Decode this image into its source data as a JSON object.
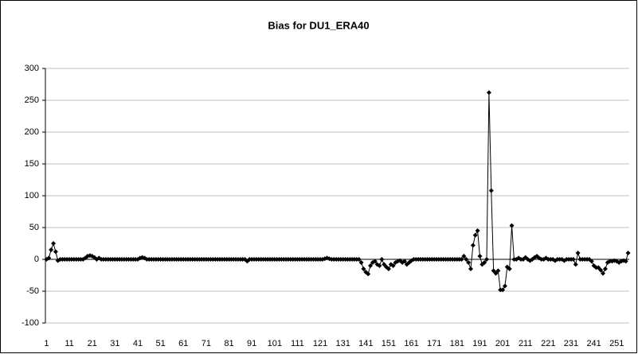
{
  "chart_data": {
    "type": "line",
    "title": "Bias for DU1_ERA40",
    "categories": [
      1,
      null,
      null,
      null,
      null,
      null,
      null,
      null,
      null,
      null,
      11,
      null,
      null,
      null,
      null,
      null,
      null,
      null,
      null,
      null,
      21,
      null,
      null,
      null,
      null,
      null,
      null,
      null,
      null,
      null,
      31,
      null,
      null,
      null,
      null,
      null,
      null,
      null,
      null,
      null,
      41,
      null,
      null,
      null,
      null,
      null,
      null,
      null,
      null,
      null,
      51,
      null,
      null,
      null,
      null,
      null,
      null,
      null,
      null,
      null,
      61,
      null,
      null,
      null,
      null,
      null,
      null,
      null,
      null,
      null,
      71,
      null,
      null,
      null,
      null,
      null,
      null,
      null,
      null,
      null,
      81,
      null,
      null,
      null,
      null,
      null,
      null,
      null,
      null,
      null,
      91,
      null,
      null,
      null,
      null,
      null,
      null,
      null,
      null,
      null,
      101,
      null,
      null,
      null,
      null,
      null,
      null,
      null,
      null,
      null,
      111,
      null,
      null,
      null,
      null,
      null,
      null,
      null,
      null,
      null,
      121,
      null,
      null,
      null,
      null,
      null,
      null,
      null,
      null,
      null,
      131,
      null,
      null,
      null,
      null,
      null,
      null,
      null,
      null,
      null,
      141,
      null,
      null,
      null,
      null,
      null,
      null,
      null,
      null,
      null,
      151,
      null,
      null,
      null,
      null,
      null,
      null,
      null,
      null,
      null,
      161,
      null,
      null,
      null,
      null,
      null,
      null,
      null,
      null,
      null,
      171,
      null,
      null,
      null,
      null,
      null,
      null,
      null,
      null,
      null,
      181,
      null,
      null,
      null,
      null,
      null,
      null,
      null,
      null,
      null,
      191,
      null,
      null,
      null,
      null,
      null,
      null,
      null,
      null,
      null,
      201,
      null,
      null,
      null,
      null,
      null,
      null,
      null,
      null,
      null,
      211,
      null,
      null,
      null,
      null,
      null,
      null,
      null,
      null,
      null,
      221,
      null,
      null,
      null,
      null,
      null,
      null,
      null,
      null,
      null,
      231,
      null,
      null,
      null,
      null,
      null,
      null,
      null,
      null,
      null,
      241,
      null,
      null,
      null,
      null,
      null,
      null,
      null,
      null,
      null,
      251,
      null,
      null,
      null,
      null,
      null
    ],
    "values": [
      0,
      2,
      15,
      25,
      12,
      -2,
      0,
      0,
      0,
      0,
      0,
      0,
      0,
      0,
      0,
      0,
      0,
      2,
      5,
      6,
      5,
      3,
      0,
      2,
      0,
      0,
      0,
      0,
      0,
      0,
      0,
      0,
      0,
      0,
      0,
      0,
      0,
      0,
      0,
      0,
      0,
      2,
      3,
      2,
      0,
      0,
      0,
      0,
      0,
      0,
      0,
      0,
      0,
      0,
      0,
      0,
      0,
      0,
      0,
      0,
      0,
      0,
      0,
      0,
      0,
      0,
      0,
      0,
      0,
      0,
      0,
      0,
      0,
      0,
      0,
      0,
      0,
      0,
      0,
      0,
      0,
      0,
      0,
      0,
      0,
      0,
      0,
      0,
      -3,
      0,
      0,
      0,
      0,
      0,
      0,
      0,
      0,
      0,
      0,
      0,
      0,
      0,
      0,
      0,
      0,
      0,
      0,
      0,
      0,
      0,
      0,
      0,
      0,
      0,
      0,
      0,
      0,
      0,
      0,
      0,
      0,
      0,
      1,
      2,
      1,
      0,
      0,
      0,
      0,
      0,
      0,
      0,
      0,
      0,
      0,
      0,
      0,
      0,
      -5,
      -15,
      -20,
      -23,
      -10,
      -5,
      -3,
      -8,
      -10,
      0,
      -8,
      -12,
      -15,
      -8,
      -10,
      -5,
      -3,
      -2,
      -5,
      -3,
      -8,
      -5,
      -2,
      0,
      0,
      0,
      0,
      0,
      0,
      0,
      0,
      0,
      0,
      0,
      0,
      0,
      0,
      0,
      0,
      0,
      0,
      0,
      0,
      0,
      0,
      5,
      0,
      -5,
      -15,
      22,
      38,
      45,
      5,
      -8,
      -5,
      0,
      262,
      108,
      -18,
      -22,
      -18,
      -48,
      -48,
      -42,
      -12,
      -15,
      53,
      0,
      0,
      2,
      0,
      0,
      3,
      0,
      -2,
      0,
      3,
      5,
      2,
      0,
      0,
      2,
      0,
      0,
      0,
      -2,
      0,
      0,
      0,
      -2,
      0,
      0,
      0,
      0,
      -8,
      10,
      0,
      0,
      0,
      0,
      0,
      -3,
      -10,
      -13,
      -13,
      -17,
      -22,
      -15,
      -5,
      -3,
      -3,
      -2,
      -3,
      -5,
      -3,
      -2,
      -3,
      10
    ],
    "color": "#000000",
    "marker": "diamond",
    "ylim": [
      -100,
      300
    ],
    "yticks": [
      -100,
      -50,
      0,
      50,
      100,
      150,
      200,
      250,
      300
    ],
    "grid": true
  }
}
